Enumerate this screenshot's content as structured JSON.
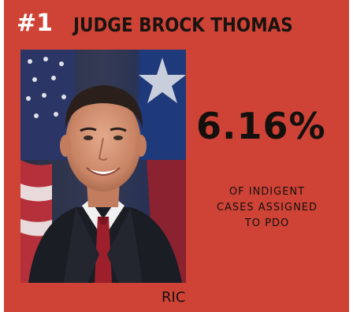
{
  "card": {
    "rank": "#1",
    "name": "JUDGE BROCK THOMAS",
    "percent": "6.16%",
    "caption_lines": [
      "OF INDIGENT",
      "CASES ASSIGNED",
      "TO PDO"
    ],
    "credit": "RIC"
  },
  "colors": {
    "background": "#cf4337",
    "name_text": "#1a1410",
    "rank_text": "#ffffff"
  },
  "photo": {
    "subject": "portrait-of-judge"
  }
}
